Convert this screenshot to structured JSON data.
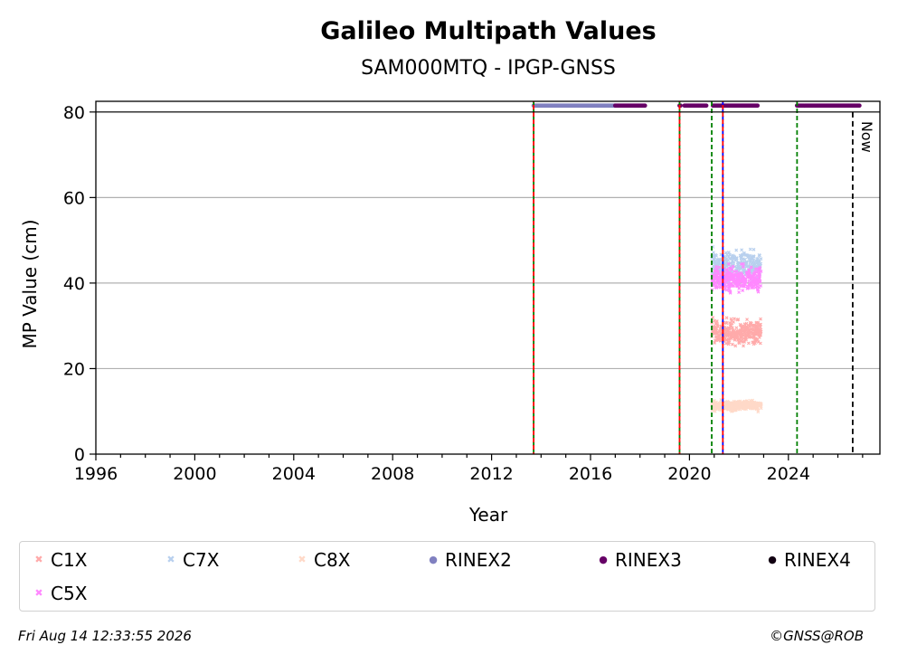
{
  "chart_data": {
    "type": "scatter",
    "title": "Galileo Multipath Values",
    "subtitle": "SAM000MTQ - IPGP-GNSS",
    "xlabel": "Year",
    "ylabel": "MP Value (cm)",
    "xlim": [
      1996,
      2027.7
    ],
    "ylim": [
      0,
      82.5
    ],
    "xticks": [
      1996,
      2000,
      2004,
      2008,
      2012,
      2016,
      2020,
      2024
    ],
    "yticks": [
      0,
      20,
      40,
      60,
      80
    ],
    "grid": "y",
    "reference_line_y": 80,
    "now_line": {
      "x": 2026.6,
      "label": "Now"
    },
    "event_lines": [
      {
        "x": 2013.7,
        "colors": [
          "#008000",
          "#ff0000"
        ]
      },
      {
        "x": 2019.6,
        "colors": [
          "#008000",
          "#ff0000"
        ]
      },
      {
        "x": 2020.9,
        "colors": [
          "#008000"
        ]
      },
      {
        "x": 2021.35,
        "colors": [
          "#0000ff",
          "#ff0000"
        ]
      },
      {
        "x": 2024.35,
        "colors": [
          "#008000"
        ]
      }
    ],
    "series": [
      {
        "name": "C1X",
        "color": "#ffaaaa",
        "marker": "x",
        "x_range": [
          2020.9,
          2022.9
        ],
        "y_mean": 28.5,
        "y_spread": 2.5
      },
      {
        "name": "C7X",
        "color": "#b8d0ee",
        "marker": "x",
        "x_range": [
          2020.9,
          2022.9
        ],
        "y_mean": 44,
        "y_spread": 3
      },
      {
        "name": "C8X",
        "color": "#ffd9c8",
        "marker": "x",
        "x_range": [
          2020.9,
          2022.9
        ],
        "y_mean": 11.3,
        "y_spread": 1
      },
      {
        "name": "C5X",
        "color": "#ff88ff",
        "marker": "x",
        "x_range": [
          2020.9,
          2022.9
        ],
        "y_mean": 41,
        "y_spread": 2.5
      },
      {
        "name": "RINEX2",
        "color": "#8080c0",
        "marker": "o",
        "x_range": [
          2013.7,
          2017.0
        ],
        "y": 81.5
      },
      {
        "name": "RINEX3",
        "color": "#660066",
        "marker": "o",
        "segments": [
          [
            2017.0,
            2018.2
          ],
          [
            2019.6,
            2019.65
          ],
          [
            2019.8,
            2020.7
          ],
          [
            2020.95,
            2022.75
          ],
          [
            2024.35,
            2026.9
          ]
        ],
        "y": 81.5
      },
      {
        "name": "RINEX4",
        "color": "#110011",
        "marker": "o"
      }
    ]
  },
  "footer": {
    "timestamp": "Fri Aug 14 12:33:55 2026",
    "copyright": "©GNSS@ROB"
  }
}
